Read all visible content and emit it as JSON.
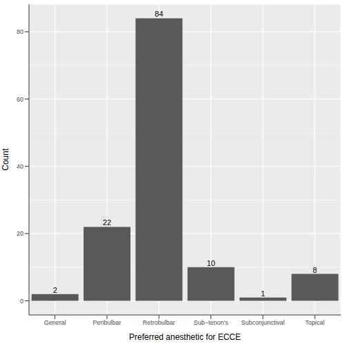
{
  "chart_data": {
    "type": "bar",
    "x_label": "Preferred anesthetic for ECCE",
    "y_label": "Count",
    "categories": [
      "General",
      "Peribulbar",
      "Retrobulbar",
      "Sub−tenon's",
      "Subconjunctival",
      "Topical"
    ],
    "values": [
      2,
      22,
      84,
      10,
      1,
      8
    ],
    "color": "#595959",
    "ylim": [
      -4.2,
      88.2
    ],
    "yticks": [
      0,
      20,
      40,
      60,
      80
    ],
    "grid": true,
    "data_labels": true
  }
}
